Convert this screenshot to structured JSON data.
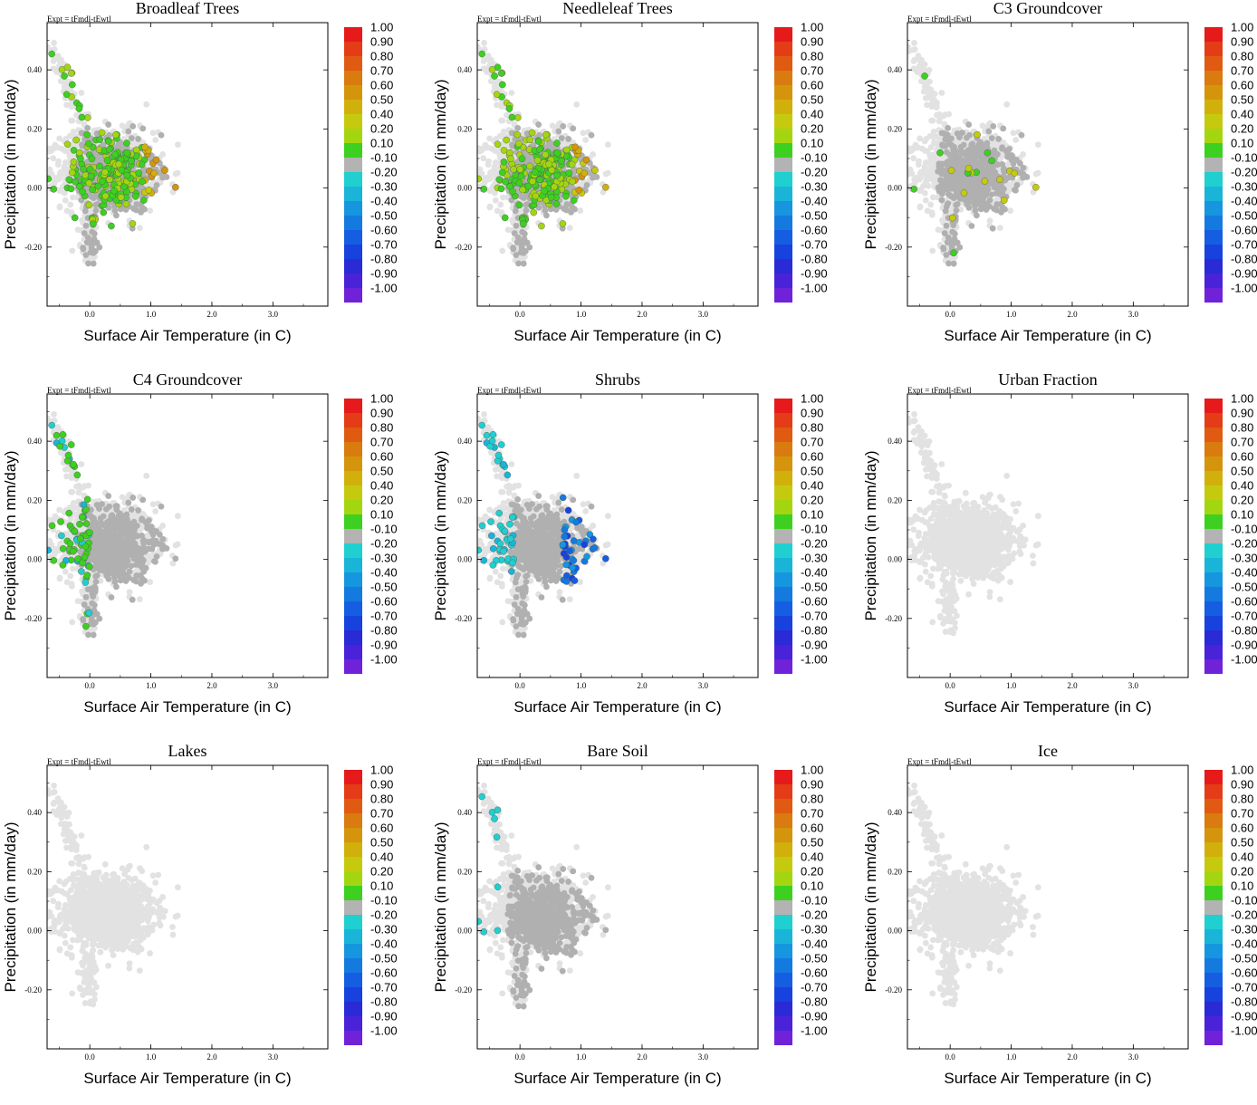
{
  "figure": {
    "expt_label": "Expt = tFmdl-tEwtl",
    "xlabel": "Surface Air Temperature (in C)",
    "ylabel": "Precipitation (in mm/day)",
    "xlim": [
      -0.7,
      3.9
    ],
    "ylim": [
      -0.4,
      0.56
    ],
    "x_ticks": [
      "0.0",
      "1.0",
      "2.0",
      "3.0"
    ],
    "y_ticks": [
      "-0.20",
      "0.00",
      "0.20",
      "0.40"
    ],
    "colorbar": {
      "labels": [
        "1.00",
        "0.90",
        "0.80",
        "0.70",
        "0.60",
        "0.50",
        "0.40",
        "0.20",
        "0.10",
        "-0.10",
        "-0.20",
        "-0.30",
        "-0.40",
        "-0.50",
        "-0.60",
        "-0.70",
        "-0.80",
        "-0.90",
        "-1.00"
      ],
      "colors": [
        "#e6191b",
        "#e43c16",
        "#e05a12",
        "#d97b0e",
        "#d4950c",
        "#d2b00c",
        "#c6ca0e",
        "#a3d610",
        "#3dd020",
        "#b3b3b3",
        "#20cfcf",
        "#1ab4d8",
        "#1596de",
        "#147ae0",
        "#155ee1",
        "#1742dd",
        "#2a2ad6",
        "#4a22d8",
        "#7022d8"
      ]
    },
    "panels": [
      "Broadleaf Trees",
      "Needleleaf Trees",
      "C3 Groundcover",
      "C4 Groundcover",
      "Shrubs",
      "Urban Fraction",
      "Lakes",
      "Bare Soil",
      "Ice"
    ]
  },
  "chart_data": [
    {
      "type": "scatter",
      "title": "Broadleaf Trees",
      "highlight": "warm-green-yellow",
      "xlabel": "Surface Air Temperature (in C)",
      "ylabel": "Precipitation (in mm/day)",
      "colorbar_range": [
        -1.0,
        1.0
      ]
    },
    {
      "type": "scatter",
      "title": "Needleleaf Trees",
      "highlight": "warm-green-yellow",
      "xlabel": "Surface Air Temperature (in C)",
      "ylabel": "Precipitation (in mm/day)",
      "colorbar_range": [
        -1.0,
        1.0
      ]
    },
    {
      "type": "scatter",
      "title": "C3 Groundcover",
      "highlight": "mostly-neutral",
      "xlabel": "Surface Air Temperature (in C)",
      "ylabel": "Precipitation (in mm/day)",
      "colorbar_range": [
        -1.0,
        1.0
      ]
    },
    {
      "type": "scatter",
      "title": "C4 Groundcover",
      "highlight": "cool-left-cluster",
      "xlabel": "Surface Air Temperature (in C)",
      "ylabel": "Precipitation (in mm/day)",
      "colorbar_range": [
        -1.0,
        1.0
      ]
    },
    {
      "type": "scatter",
      "title": "Shrubs",
      "highlight": "blue-right-cluster",
      "xlabel": "Surface Air Temperature (in C)",
      "ylabel": "Precipitation (in mm/day)",
      "colorbar_range": [
        -1.0,
        1.0
      ]
    },
    {
      "type": "scatter",
      "title": "Urban Fraction",
      "highlight": "none",
      "xlabel": "Surface Air Temperature (in C)",
      "ylabel": "Precipitation (in mm/day)",
      "colorbar_range": [
        -1.0,
        1.0
      ]
    },
    {
      "type": "scatter",
      "title": "Lakes",
      "highlight": "none",
      "xlabel": "Surface Air Temperature (in C)",
      "ylabel": "Precipitation (in mm/day)",
      "colorbar_range": [
        -1.0,
        1.0
      ]
    },
    {
      "type": "scatter",
      "title": "Bare Soil",
      "highlight": "cyan-left-edge",
      "xlabel": "Surface Air Temperature (in C)",
      "ylabel": "Precipitation (in mm/day)",
      "colorbar_range": [
        -1.0,
        1.0
      ]
    },
    {
      "type": "scatter",
      "title": "Ice",
      "highlight": "none",
      "xlabel": "Surface Air Temperature (in C)",
      "ylabel": "Precipitation (in mm/day)",
      "colorbar_range": [
        -1.0,
        1.0
      ]
    }
  ]
}
